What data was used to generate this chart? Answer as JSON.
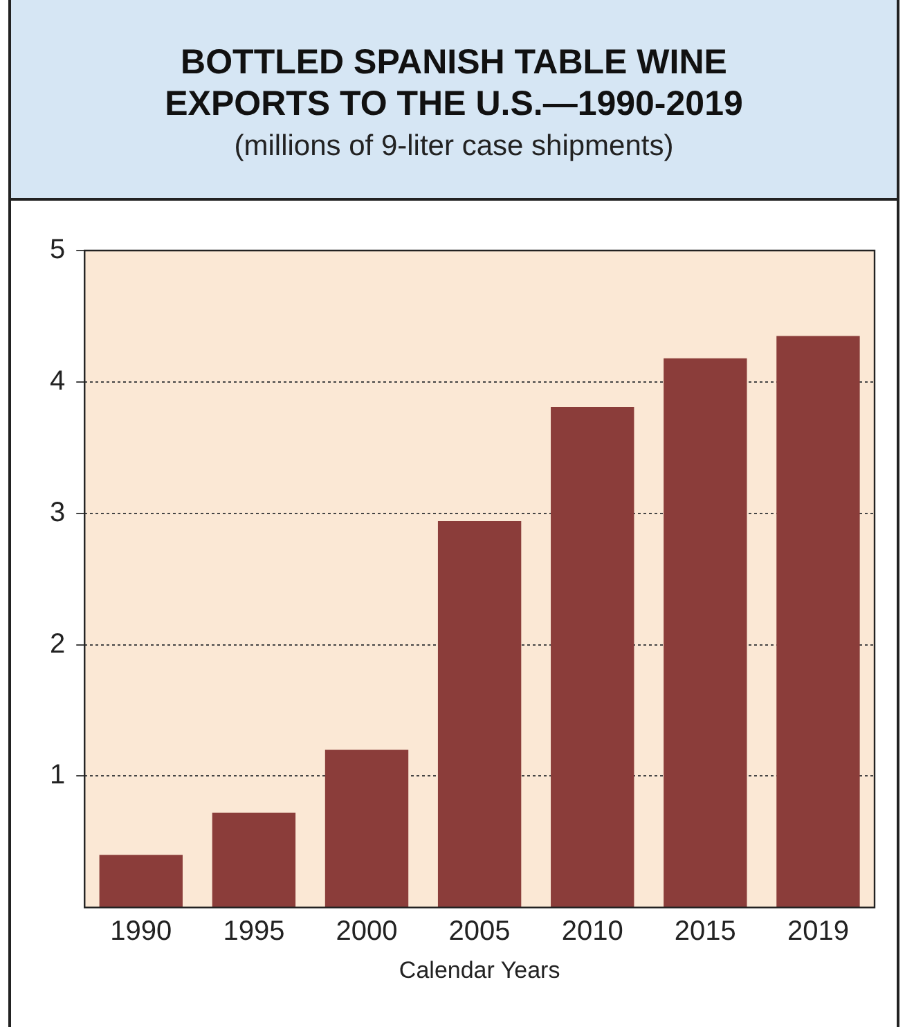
{
  "chart_data": {
    "type": "bar",
    "title": "BOTTLED SPANISH TABLE WINE EXPORTS TO THE U.S.—1990-2019",
    "subtitle": "(millions of 9-liter case shipments)",
    "xlabel": "Calendar Years",
    "categories": [
      "1990",
      "1995",
      "2000",
      "2005",
      "2010",
      "2015",
      "2019"
    ],
    "values": [
      0.4,
      0.72,
      1.2,
      2.94,
      3.81,
      4.18,
      4.35
    ],
    "color": "#8b3d3a",
    "ylim": [
      0,
      5
    ],
    "yticks": [
      1,
      2,
      3,
      4,
      5
    ],
    "grid": "y",
    "line_style": "dotted",
    "legend": false
  }
}
